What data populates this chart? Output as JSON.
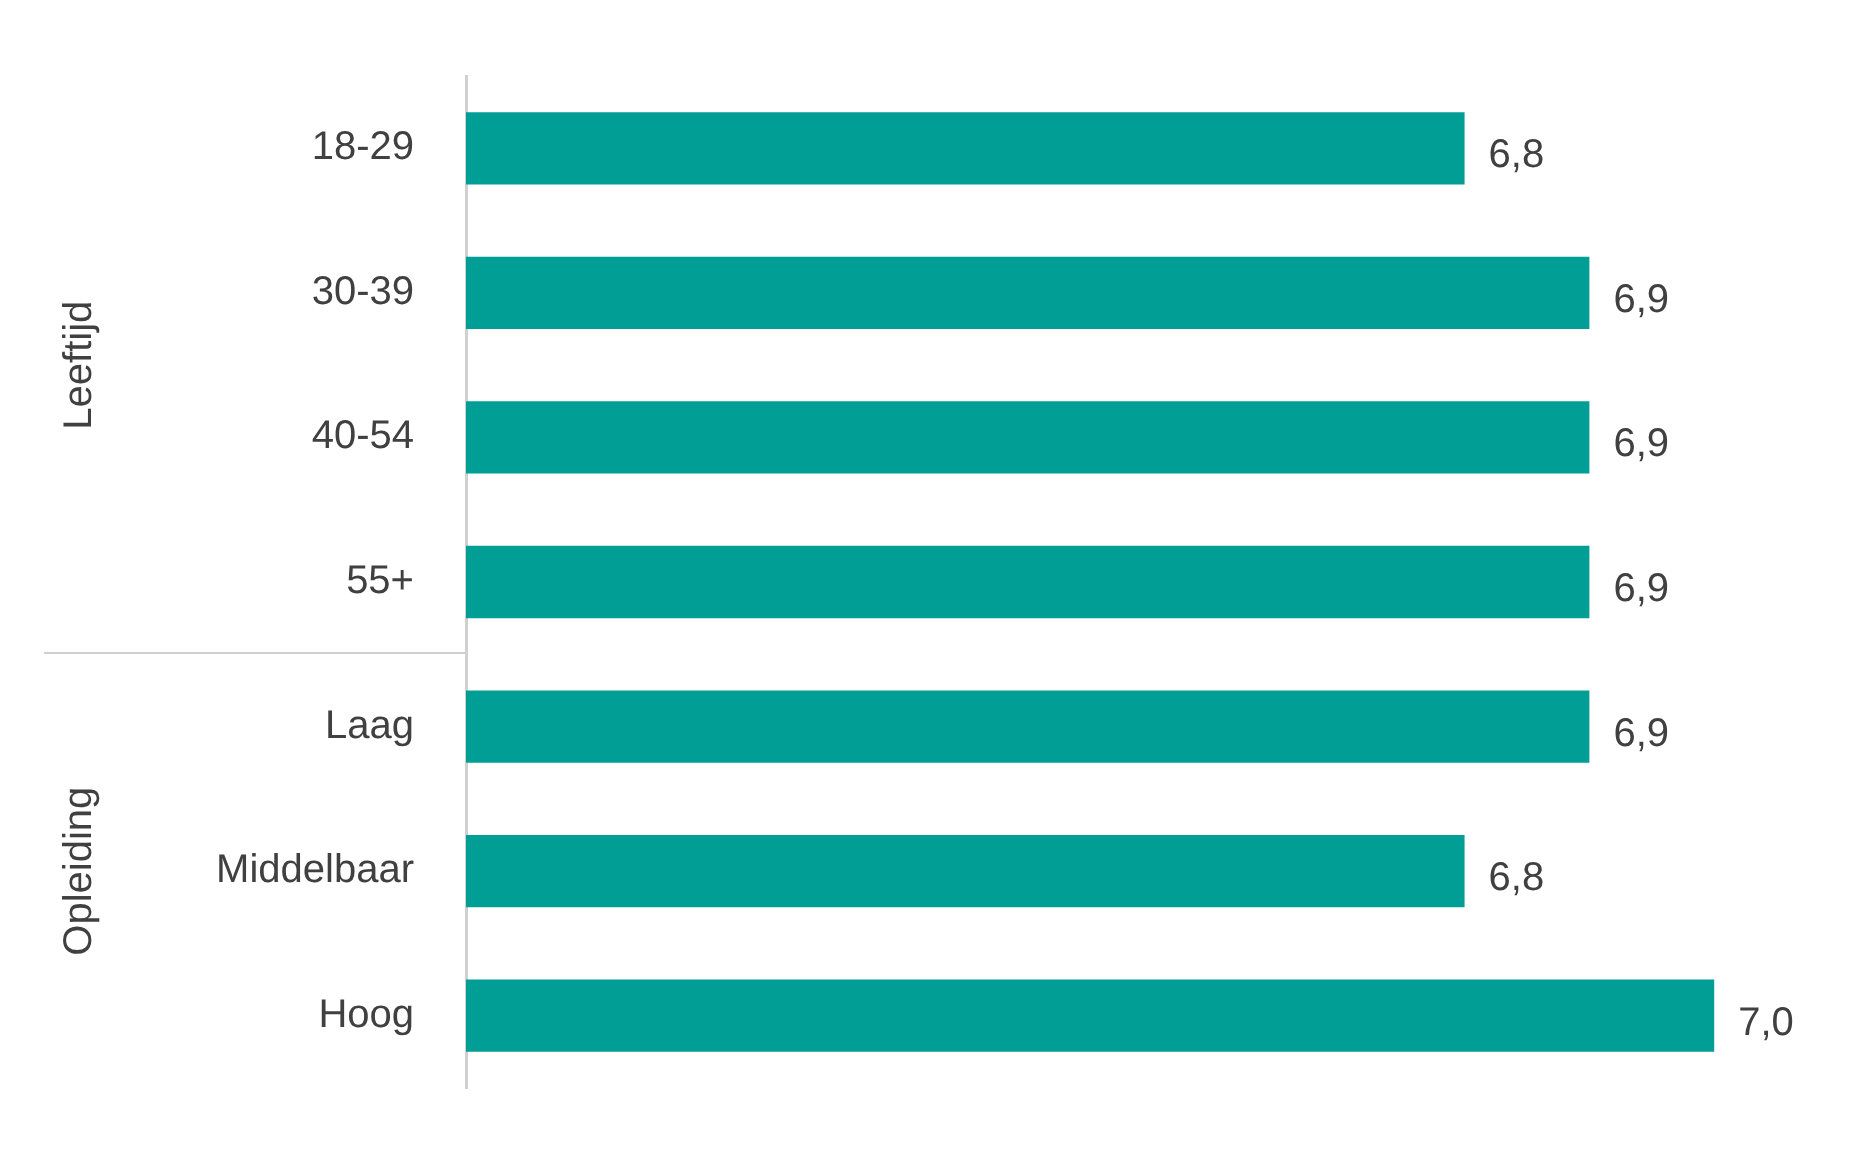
{
  "chart_data": {
    "type": "bar",
    "orientation": "horizontal",
    "categories": [
      "18-29",
      "30-39",
      "40-54",
      "55+",
      "Laag",
      "Middelbaar",
      "Hoog"
    ],
    "values": [
      6.8,
      6.9,
      6.9,
      6.9,
      6.9,
      6.8,
      7.0
    ],
    "value_labels": [
      "6,8",
      "6,9",
      "6,9",
      "6,9",
      "6,9",
      "6,8",
      "7,0"
    ],
    "color": "#009e94",
    "tick_labels": "y",
    "legend": false,
    "annotations": [
      "Leeftijd",
      "Opleiding"
    ]
  }
}
